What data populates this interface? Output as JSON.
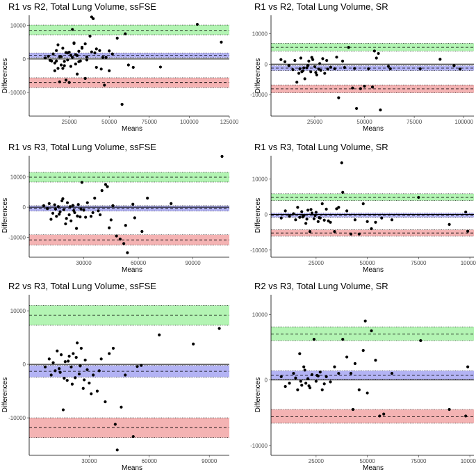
{
  "figure": {
    "description_type": "bland_altman_grid",
    "colors": {
      "upper_band": "#a6f2a6",
      "mean_band": "#a6a6f2",
      "lower_band": "#f2a6a6",
      "points": "#000000",
      "axis": "#000000"
    }
  },
  "chart_data": [
    {
      "type": "scatter",
      "title": "R1 vs R2, Total Lung Volume, ssFSE",
      "xlabel": "Means",
      "ylabel": "Differences",
      "xlim": [
        0,
        125000
      ],
      "ylim": [
        -17000,
        13000
      ],
      "xticks": [
        25000,
        50000,
        75000,
        100000,
        125000
      ],
      "xtick_labels": [
        "25000",
        "50000",
        "75000",
        "100000",
        "125000"
      ],
      "yticks": [
        -10000,
        0,
        10000
      ],
      "ytick_labels": [
        "-10000",
        "0",
        "10000"
      ],
      "mean_diff": 1100,
      "mean_ci": [
        400,
        1800
      ],
      "upper_loa": 8500,
      "upper_ci": [
        7200,
        10100
      ],
      "lower_loa": -7000,
      "lower_ci": [
        -8500,
        -5600
      ],
      "x": [
        10000,
        12000,
        13000,
        15000,
        16000,
        17000,
        18000,
        19000,
        20000,
        21000,
        22000,
        23000,
        24000,
        25000,
        26000,
        27000,
        28000,
        29000,
        30000,
        31000,
        32000,
        33000,
        35000,
        36000,
        38000,
        39000,
        40000,
        41000,
        42000,
        44000,
        45000,
        47000,
        48000,
        50000,
        52000,
        55000,
        58000,
        60000,
        62000,
        65000,
        82000,
        105000,
        120000,
        14000,
        16000,
        18000,
        19000,
        21000,
        23000,
        25000,
        28000,
        30000,
        33000,
        36000,
        39000,
        42000,
        46000,
        50000,
        26000,
        27000,
        29000,
        31000,
        35000,
        22000,
        24000,
        17000,
        20000
      ],
      "y": [
        300,
        800,
        -400,
        1500,
        -1200,
        2500,
        -2800,
        600,
        -1800,
        3200,
        -700,
        1900,
        -300,
        2000,
        -2200,
        500,
        4800,
        -1500,
        1000,
        2300,
        -600,
        3500,
        -5800,
        600,
        6800,
        12500,
        12000,
        1800,
        -2500,
        2500,
        -3000,
        -7800,
        500,
        2400,
        1500,
        6200,
        -13500,
        7500,
        -1800,
        -2500,
        -2400,
        10300,
        5000,
        -600,
        -3500,
        4200,
        -6800,
        -2800,
        -6300,
        -7000,
        4600,
        -4500,
        3200,
        -300,
        2100,
        3000,
        500,
        -3500,
        1100,
        8800,
        1300,
        -800,
        4500,
        -2000,
        1800,
        -600,
        700
      ]
    },
    {
      "type": "scatter",
      "title": "R1 vs R2, Total Lung Volume, SR",
      "xlabel": "Means",
      "ylabel": "Differences",
      "xlim": [
        3000,
        105000
      ],
      "ylim": [
        -17000,
        16000
      ],
      "xticks": [
        25000,
        50000,
        75000,
        100000
      ],
      "xtick_labels": [
        "25000",
        "50000",
        "75000",
        "100000"
      ],
      "yticks": [
        -10000,
        0,
        10000
      ],
      "ytick_labels": [
        "-10000",
        "0",
        "10000"
      ],
      "mean_diff": -1300,
      "mean_ci": [
        -2100,
        -500
      ],
      "upper_loa": 5500,
      "upper_ci": [
        4300,
        6800
      ],
      "lower_loa": -8100,
      "lower_ci": [
        -9400,
        -6800
      ],
      "x": [
        8000,
        10000,
        12000,
        14000,
        15000,
        16000,
        17000,
        17500,
        18000,
        19000,
        20000,
        21000,
        22000,
        23000,
        24000,
        25000,
        26000,
        27000,
        28000,
        29000,
        30000,
        31000,
        33000,
        35000,
        37000,
        39000,
        42000,
        44000,
        46000,
        48000,
        52000,
        54000,
        55000,
        56000,
        58000,
        62000,
        63000,
        78000,
        88000,
        95000,
        98000,
        18500,
        19500,
        21500,
        23500,
        25500,
        27500,
        31500,
        36000,
        40000,
        45000,
        50000,
        57000
      ],
      "y": [
        1500,
        800,
        -500,
        -1800,
        1200,
        -5900,
        -3000,
        -1500,
        2000,
        -2200,
        -4800,
        -1200,
        1000,
        -2500,
        1500,
        -800,
        -3500,
        -1600,
        -2000,
        1800,
        -3000,
        1200,
        -1000,
        -1500,
        -11000,
        1000,
        5500,
        -7800,
        -14500,
        -8000,
        -1500,
        -7500,
        4300,
        2000,
        -15000,
        -700,
        -1500,
        -1500,
        1600,
        -500,
        -1600,
        -2500,
        -1200,
        -500,
        2200,
        -2700,
        200,
        -1600,
        2300,
        -1100,
        -1400,
        -7200,
        3500
      ]
    },
    {
      "type": "scatter",
      "title": "R1 vs R3, Total Lung Volume, ssFSE",
      "xlabel": "Means",
      "ylabel": "Differences",
      "xlim": [
        0,
        110000
      ],
      "ylim": [
        -16500,
        17000
      ],
      "xticks": [
        30000,
        60000,
        90000
      ],
      "xtick_labels": [
        "30000",
        "60000",
        "90000"
      ],
      "yticks": [
        -10000,
        0,
        10000
      ],
      "ytick_labels": [
        "-10000",
        "0",
        "10000"
      ],
      "mean_diff": -400,
      "mean_ci": [
        -1300,
        500
      ],
      "upper_loa": 9900,
      "upper_ci": [
        8300,
        11500
      ],
      "lower_loa": -10800,
      "lower_ci": [
        -12500,
        -9100
      ],
      "x": [
        8000,
        10000,
        11000,
        12000,
        13000,
        14000,
        15000,
        16000,
        17000,
        18000,
        19000,
        20000,
        21000,
        22000,
        23000,
        24000,
        25000,
        26000,
        27000,
        28000,
        29000,
        30000,
        32000,
        34000,
        36000,
        38000,
        40000,
        42000,
        43000,
        44000,
        46000,
        48000,
        50000,
        52000,
        54000,
        58000,
        62000,
        65000,
        78000,
        106000,
        14500,
        16500,
        18500,
        20500,
        22500,
        24500,
        26500,
        28500,
        31000,
        35000,
        39000,
        45000,
        53000,
        57000
      ],
      "y": [
        500,
        -500,
        1200,
        -4000,
        -2000,
        800,
        -3000,
        200,
        -1500,
        2100,
        -800,
        -5500,
        1500,
        -2500,
        -4500,
        600,
        -1800,
        -7000,
        900,
        -3200,
        8200,
        -1000,
        1500,
        -3000,
        3000,
        -1200,
        5500,
        7500,
        6800,
        -6800,
        500,
        -9500,
        -10500,
        -12000,
        -15000,
        -3500,
        -8000,
        3000,
        1200,
        16800,
        -600,
        -2300,
        2800,
        -3700,
        200,
        -1100,
        -2900,
        -600,
        -3300,
        -1800,
        -2500,
        -4200,
        -6000,
        1000
      ]
    },
    {
      "type": "scatter",
      "title": "R1 vs R3, Total Lung Volume, SR",
      "xlabel": "Means",
      "ylabel": "Differences",
      "xlim": [
        3000,
        102000
      ],
      "ylim": [
        -12000,
        16500
      ],
      "xticks": [
        25000,
        50000,
        75000,
        100000
      ],
      "xtick_labels": [
        "25000",
        "50000",
        "75000",
        "100000"
      ],
      "yticks": [
        -10000,
        0,
        10000
      ],
      "ytick_labels": [
        "-10000",
        "0",
        "10000"
      ],
      "mean_diff": -200,
      "mean_ci": [
        -800,
        400
      ],
      "upper_loa": 4800,
      "upper_ci": [
        3900,
        5800
      ],
      "lower_loa": -5200,
      "lower_ci": [
        -6100,
        -4300
      ],
      "x": [
        8000,
        10000,
        12000,
        14000,
        15000,
        16000,
        17000,
        18000,
        19000,
        20000,
        21000,
        22000,
        23000,
        24000,
        25000,
        26000,
        27000,
        28000,
        29000,
        30000,
        32000,
        34000,
        36000,
        37500,
        38000,
        40000,
        42000,
        44000,
        46000,
        48000,
        50000,
        52000,
        54000,
        57000,
        62000,
        75000,
        90000,
        98000,
        99000,
        18500,
        20500,
        22500,
        24500,
        26500,
        31000,
        35000
      ],
      "y": [
        -1000,
        1000,
        -500,
        200,
        -1500,
        2000,
        -800,
        800,
        -300,
        -2500,
        1200,
        -4800,
        400,
        -1200,
        600,
        -2000,
        -1000,
        3000,
        -1600,
        1500,
        -2200,
        -4800,
        2000,
        14500,
        6200,
        1000,
        -5500,
        -1500,
        -5500,
        3000,
        -2000,
        -4000,
        -2200,
        -1000,
        -1500,
        4800,
        -2800,
        700,
        -4700,
        -700,
        -1300,
        1400,
        -300,
        -900,
        -1800,
        1600
      ]
    },
    {
      "type": "scatter",
      "title": "R2 vs R3, Total Lung Volume, ssFSE",
      "xlabel": "Means",
      "ylabel": "Differences",
      "xlim": [
        0,
        100000
      ],
      "ylim": [
        -17000,
        13000
      ],
      "xticks": [
        30000,
        60000,
        90000
      ],
      "xtick_labels": [
        "30000",
        "60000",
        "90000"
      ],
      "yticks": [
        -10000,
        0,
        10000
      ],
      "ytick_labels": [
        "-10000",
        "0",
        "10000"
      ],
      "mean_diff": -1300,
      "mean_ci": [
        -2400,
        -200
      ],
      "upper_loa": 9200,
      "upper_ci": [
        7300,
        11000
      ],
      "lower_loa": -11800,
      "lower_ci": [
        -13700,
        -10000
      ],
      "x": [
        8000,
        10000,
        11000,
        12000,
        13000,
        14000,
        15000,
        16000,
        17000,
        18000,
        19000,
        20000,
        21000,
        22000,
        23000,
        24000,
        25000,
        26000,
        27000,
        28000,
        29000,
        30000,
        32000,
        34000,
        36000,
        38000,
        40000,
        42000,
        43000,
        44000,
        46000,
        48000,
        52000,
        54000,
        56000,
        65000,
        82000,
        95000,
        15500,
        17500,
        19500,
        21500,
        23500,
        25500,
        27500,
        31000,
        35000
      ],
      "y": [
        -500,
        1000,
        -2000,
        300,
        -1200,
        2500,
        -800,
        1800,
        -8500,
        500,
        -3000,
        1500,
        -500,
        2000,
        -2500,
        4000,
        -1800,
        3000,
        -4500,
        800,
        -1000,
        -3500,
        -2000,
        -5000,
        1000,
        -7000,
        2000,
        3000,
        -11200,
        -16000,
        -8000,
        -2000,
        -13500,
        -400,
        -200,
        5500,
        3800,
        6700,
        -1500,
        -2600,
        600,
        -3700,
        1300,
        -300,
        -2900,
        -5500,
        -1200
      ]
    },
    {
      "type": "scatter",
      "title": "R2 vs R3, Total Lung Volume, SR",
      "xlabel": "Means",
      "ylabel": "Differences",
      "xlim": [
        3000,
        102000
      ],
      "ylim": [
        -11500,
        13000
      ],
      "xticks": [
        25000,
        50000,
        75000,
        100000
      ],
      "xtick_labels": [
        "25000",
        "50000",
        "75000",
        "100000"
      ],
      "yticks": [
        -10000,
        0,
        10000
      ],
      "ytick_labels": [
        "-10000",
        "0",
        "10000"
      ],
      "mean_diff": 700,
      "mean_ci": [
        100,
        1400
      ],
      "upper_loa": 7000,
      "upper_ci": [
        6000,
        8100
      ],
      "lower_loa": -5600,
      "lower_ci": [
        -6600,
        -4500
      ],
      "x": [
        8000,
        10000,
        12000,
        14000,
        15000,
        16000,
        17000,
        18000,
        19000,
        20000,
        21000,
        22000,
        23000,
        24000,
        25000,
        26000,
        27000,
        28000,
        30000,
        32000,
        34000,
        36000,
        38000,
        40000,
        42000,
        43000,
        44000,
        46000,
        48000,
        49000,
        50000,
        52000,
        54000,
        56000,
        58000,
        62000,
        76000,
        90000,
        98000,
        99000,
        17500,
        19500,
        21500,
        25500,
        29000
      ],
      "y": [
        500,
        -1000,
        -500,
        1000,
        300,
        -1500,
        4000,
        -800,
        2000,
        -500,
        200,
        -1200,
        800,
        6200,
        -200,
        600,
        1200,
        -1500,
        500,
        -300,
        2000,
        1000,
        6200,
        3500,
        1000,
        -4500,
        2500,
        -1500,
        4500,
        9000,
        -2000,
        7500,
        3000,
        -5500,
        -5200,
        1000,
        6000,
        -4500,
        -5500,
        2000,
        -200,
        1500,
        -900,
        700,
        -600
      ]
    }
  ]
}
